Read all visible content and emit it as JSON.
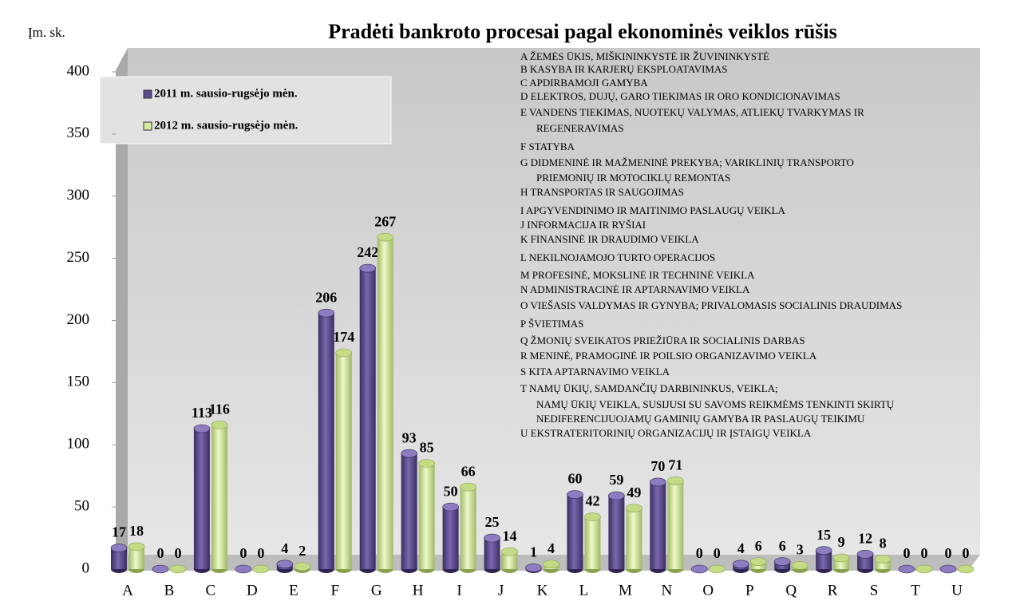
{
  "chart_data": {
    "type": "bar",
    "title": "Pradėti bankroto procesai pagal ekonominės veiklos rūšis",
    "y_axis_label": "Įm. sk.",
    "categories": [
      "A",
      "B",
      "C",
      "D",
      "E",
      "F",
      "G",
      "H",
      "I",
      "J",
      "K",
      "L",
      "M",
      "N",
      "O",
      "P",
      "Q",
      "R",
      "S",
      "T",
      "U"
    ],
    "series": [
      {
        "name": "2011 m. sausio-rugsėjo mėn.",
        "color": "#5b4a8c",
        "values": [
          17,
          0,
          113,
          0,
          4,
          206,
          242,
          93,
          50,
          25,
          1,
          60,
          59,
          70,
          0,
          4,
          6,
          15,
          12,
          0,
          0
        ]
      },
      {
        "name": "2012 m. sausio-rugsėjo mėn.",
        "color": "#d6eb9c",
        "values": [
          18,
          0,
          116,
          0,
          2,
          174,
          267,
          85,
          66,
          14,
          4,
          42,
          49,
          71,
          0,
          6,
          3,
          9,
          8,
          0,
          0
        ]
      }
    ],
    "ylim": [
      0,
      400
    ],
    "yticks": [
      0,
      50,
      100,
      150,
      200,
      250,
      300,
      350,
      400
    ],
    "code_legend": [
      "A  ŽEMĖS ŪKIS, MIŠKININKYSTĖ IR ŽUVININKYSTĖ",
      "B   KASYBA IR KARJERŲ EKSPLOATAVIMAS",
      "C  APDIRBAMOJI GAMYBA",
      "D   ELEKTROS, DUJŲ, GARO TIEKIMAS IR ORO KONDICIONAVIMAS",
      "E   VANDENS TIEKIMAS, NUOTEKŲ VALYMAS, ATLIEKŲ TVARKYMAS IR",
      "REGENERAVIMAS",
      "F   STATYBA",
      "G   DIDMENINĖ IR MAŽMENINĖ PREKYBA; VARIKLINIŲ TRANSPORTO",
      "PRIEMONIŲ IR MOTOCIKLŲ REMONTAS",
      "H   TRANSPORTAS IR SAUGOJIMAS",
      "I    APGYVENDINIMO IR MAITINIMO PASLAUGŲ VEIKLA",
      "J    INFORMACIJA IR RYŠIAI",
      "K  FINANSINĖ IR DRAUDIMO VEIKLA",
      "L    NEKILNOJAMOJO TURTO OPERACIJOS",
      "M   PROFESINĖ, MOKSLINĖ IR TECHNINĖ VEIKLA",
      "N   ADMINISTRACINĖ IR APTARNAVIMO VEIKLA",
      "O  VIEŠASIS VALDYMAS IR GYNYBA; PRIVALOMASIS SOCIALINIS DRAUDIMAS",
      "P   ŠVIETIMAS",
      "Q  ŽMONIŲ SVEIKATOS PRIEŽIŪRA IR SOCIALINIS DARBAS",
      "R   MENINĖ, PRAMOGINĖ IR POILSIO ORGANIZAVIMO VEIKLA",
      "S    KITA APTARNAVIMO VEIKLA",
      "T   NAMŲ ŪKIŲ, SAMDANČIŲ DARBININKUS, VEIKLA;",
      "NAMŲ ŪKIŲ VEIKLA, SUSIJUSI SU SAVOMS REIKMĖMS TENKINTI SKIRTŲ",
      "NEDIFERENCIJUOJAMŲ GAMINIŲ GAMYBA IR PASLAUGŲ TEIKIMU",
      "U   EKSTRATERITORINIŲ ORGANIZACIJŲ IR ĮSTAIGŲ VEIKLA"
    ]
  }
}
